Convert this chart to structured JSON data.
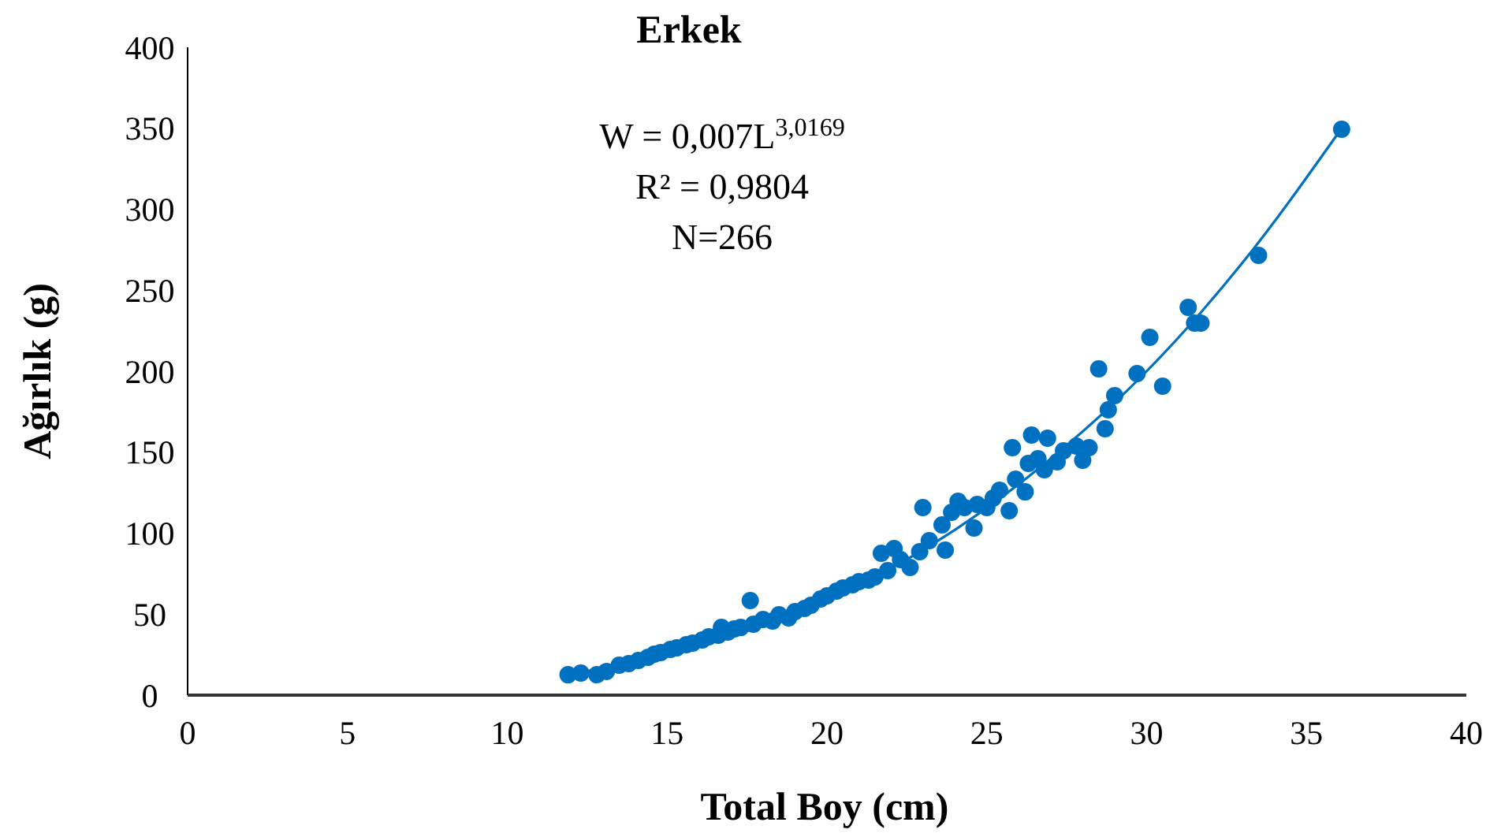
{
  "chart_data": {
    "type": "scatter",
    "title": "Erkek",
    "xlabel": "Total Boy (cm)",
    "ylabel": "Ağırlık (g)",
    "xlim": [
      0,
      40
    ],
    "ylim": [
      0,
      400
    ],
    "xticks": [
      0,
      5,
      10,
      15,
      20,
      25,
      30,
      35,
      40
    ],
    "yticks": [
      0,
      50,
      100,
      150,
      200,
      250,
      300,
      350,
      400
    ],
    "grid": false,
    "annotations": [
      "W = 0,007L$^{3,0169}$",
      "R² = 0,9804",
      "N=266"
    ],
    "series": [
      {
        "color": "#0070c0",
        "marker": "circle",
        "x": [
          11.9,
          12.3,
          12.8,
          13.1,
          13.5,
          13.8,
          14.1,
          14.4,
          14.6,
          14.8,
          15.1,
          15.3,
          15.6,
          15.8,
          16.1,
          16.3,
          16.6,
          16.7,
          16.9,
          17.1,
          17.3,
          17.6,
          17.7,
          18.0,
          18.3,
          18.5,
          18.8,
          19.0,
          19.3,
          19.5,
          19.8,
          20.0,
          20.3,
          20.5,
          20.8,
          21.0,
          21.3,
          21.5,
          21.7,
          21.9,
          22.1,
          22.3,
          22.6,
          23.0,
          22.9,
          23.2,
          23.6,
          23.7,
          23.9,
          24.1,
          24.3,
          24.6,
          24.7,
          25.0,
          25.2,
          25.4,
          25.7,
          25.8,
          25.9,
          26.2,
          26.3,
          26.4,
          26.6,
          26.8,
          26.9,
          27.2,
          27.4,
          27.8,
          28.0,
          28.2,
          28.5,
          28.7,
          28.8,
          29.0,
          29.7,
          30.1,
          30.5,
          31.3,
          31.5,
          31.7,
          33.5,
          36.1
        ],
        "values": [
          12.6,
          13.6,
          12.6,
          14.6,
          18.5,
          19.5,
          21.4,
          23.4,
          25.3,
          26.3,
          28.2,
          29.2,
          31.1,
          32.1,
          34.1,
          36.0,
          37.0,
          41.8,
          38.9,
          40.9,
          41.8,
          58.4,
          43.8,
          46.7,
          45.7,
          49.6,
          47.7,
          51.6,
          53.5,
          55.5,
          59.4,
          61.3,
          64.2,
          66.2,
          68.1,
          70.1,
          71.0,
          73.0,
          87.6,
          76.9,
          90.5,
          83.7,
          78.8,
          115.8,
          88.6,
          95.4,
          105.1,
          89.5,
          112.9,
          119.7,
          115.8,
          103.2,
          117.8,
          115.8,
          121.7,
          126.5,
          113.9,
          152.8,
          133.3,
          125.5,
          143.1,
          160.6,
          146.0,
          139.2,
          158.6,
          144.0,
          150.9,
          153.8,
          145.0,
          152.8,
          201.5,
          164.5,
          176.2,
          184.9,
          198.5,
          220.9,
          190.8,
          239.4,
          229.7,
          229.7,
          271.5,
          349.4
        ]
      },
      {
        "type": "line",
        "color": "#0070c0",
        "marker": "none",
        "x": [
          12,
          15,
          18,
          21,
          24,
          27,
          30,
          33,
          36.1
        ],
        "values": [
          13,
          25,
          43,
          68,
          102,
          146,
          200,
          267,
          350
        ]
      }
    ]
  }
}
